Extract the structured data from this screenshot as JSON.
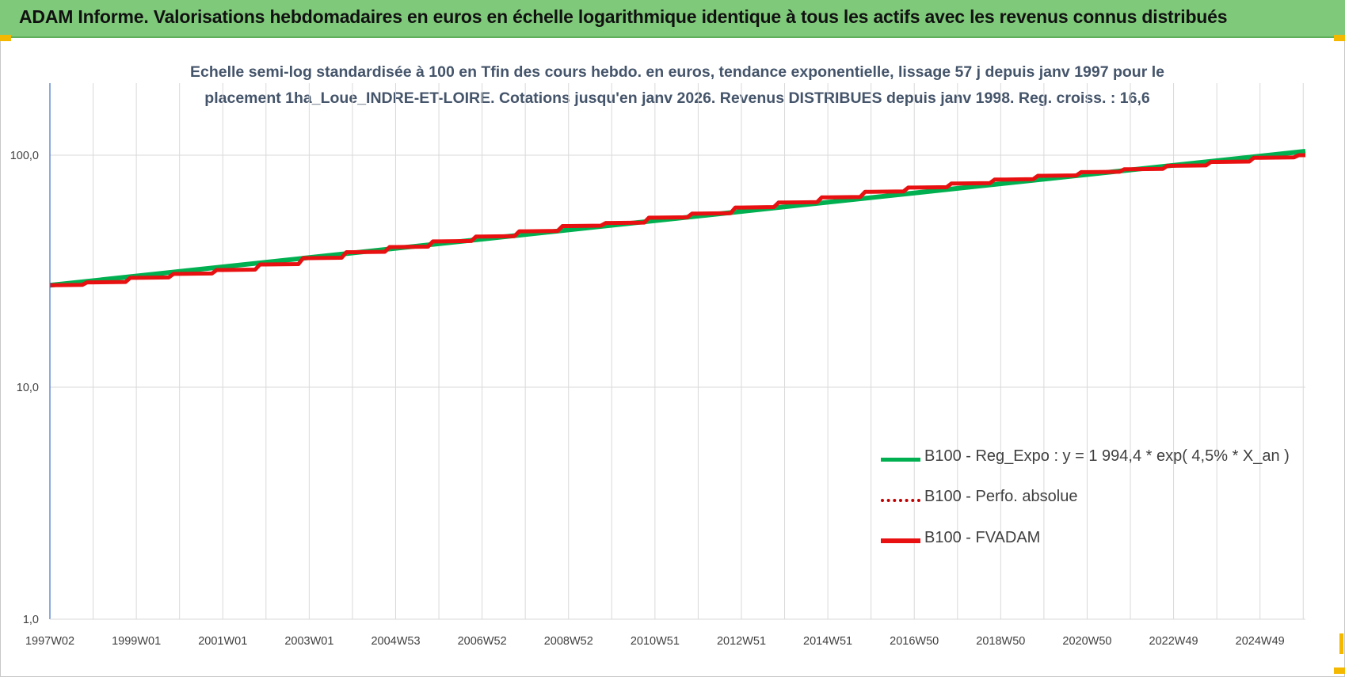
{
  "header": {
    "title": "ADAM Informe. Valorisations hebdomadaires en euros en échelle logarithmique identique à tous les actifs avec les revenus connus distribués"
  },
  "colors": {
    "header_bg": "#7fc97a",
    "reg_expo": "#00b050",
    "perfo_absolue": "#c00000",
    "fvadam": "#e81010",
    "grid": "#d9d9d9",
    "axis": "#4472c4",
    "handle": "#f5b800"
  },
  "chart_data": {
    "type": "line",
    "title_line1": "Echelle semi-log standardisée à 100 en Tfin des cours hebdo. en euros, tendance exponentielle, lissage 57 j depuis janv 1997 pour le",
    "title_line2": "placement 1ha_Loue_INDRE-ET-LOIRE. Cotations jusqu'en janv 2026. Revenus DISTRIBUES depuis janv 1998. Reg. croiss. : 16,6",
    "y_scale": "log",
    "ylim": [
      1,
      200
    ],
    "y_ticks": [
      {
        "value": 1,
        "label": "1,0"
      },
      {
        "value": 10,
        "label": "10,0"
      },
      {
        "value": 100,
        "label": "100,0"
      }
    ],
    "x_ticks": [
      "1997W02",
      "1999W01",
      "2001W01",
      "2003W01",
      "2004W53",
      "2006W52",
      "2008W52",
      "2010W51",
      "2012W51",
      "2014W51",
      "2016W50",
      "2018W50",
      "2020W50",
      "2022W49",
      "2024W49"
    ],
    "x_start_year": 1997.0,
    "x_end_year": 2026.05,
    "legend_position": "bottom-right",
    "series": [
      {
        "name": "B100 - Reg_Expo : y = 1 994,4 * exp( 4,5% *  X_an )",
        "style": "solid-thin",
        "points": [
          [
            1997.0,
            27.5
          ],
          [
            2026.05,
            104.0
          ]
        ]
      },
      {
        "name": "B100 - Perfo. absolue",
        "style": "dotted",
        "points": [
          [
            1997.0,
            27.5
          ],
          [
            1998.0,
            28.3
          ],
          [
            1999.0,
            29.6
          ],
          [
            2000.0,
            30.8
          ],
          [
            2001.0,
            32.0
          ],
          [
            2002.0,
            33.8
          ],
          [
            2003.0,
            36.0
          ],
          [
            2004.0,
            38.2
          ],
          [
            2005.0,
            40.2
          ],
          [
            2006.0,
            42.5
          ],
          [
            2007.0,
            44.6
          ],
          [
            2008.0,
            47.0
          ],
          [
            2009.0,
            49.5
          ],
          [
            2010.0,
            51.0
          ],
          [
            2011.0,
            53.8
          ],
          [
            2012.0,
            56.0
          ],
          [
            2013.0,
            59.5
          ],
          [
            2014.0,
            62.5
          ],
          [
            2015.0,
            65.8
          ],
          [
            2016.0,
            69.5
          ],
          [
            2017.0,
            72.5
          ],
          [
            2018.0,
            75.5
          ],
          [
            2019.0,
            78.5
          ],
          [
            2020.0,
            81.5
          ],
          [
            2021.0,
            84.5
          ],
          [
            2022.0,
            87.0
          ],
          [
            2023.0,
            90.0
          ],
          [
            2024.0,
            93.5
          ],
          [
            2025.0,
            97.5
          ],
          [
            2026.05,
            100.0
          ]
        ]
      },
      {
        "name": "B100 - FVADAM",
        "style": "solid-thick",
        "points": [
          [
            1997.0,
            27.5
          ],
          [
            1998.0,
            28.3
          ],
          [
            1999.0,
            29.6
          ],
          [
            2000.0,
            30.8
          ],
          [
            2001.0,
            32.0
          ],
          [
            2002.0,
            33.8
          ],
          [
            2003.0,
            36.0
          ],
          [
            2004.0,
            38.2
          ],
          [
            2005.0,
            40.2
          ],
          [
            2006.0,
            42.5
          ],
          [
            2007.0,
            44.6
          ],
          [
            2008.0,
            47.0
          ],
          [
            2009.0,
            49.5
          ],
          [
            2010.0,
            51.0
          ],
          [
            2011.0,
            53.8
          ],
          [
            2012.0,
            56.0
          ],
          [
            2013.0,
            59.5
          ],
          [
            2014.0,
            62.5
          ],
          [
            2015.0,
            65.8
          ],
          [
            2016.0,
            69.5
          ],
          [
            2017.0,
            72.5
          ],
          [
            2018.0,
            75.5
          ],
          [
            2019.0,
            78.5
          ],
          [
            2020.0,
            81.5
          ],
          [
            2021.0,
            84.5
          ],
          [
            2022.0,
            87.0
          ],
          [
            2023.0,
            90.0
          ],
          [
            2024.0,
            93.5
          ],
          [
            2025.0,
            97.5
          ],
          [
            2026.05,
            100.0
          ]
        ]
      }
    ]
  }
}
